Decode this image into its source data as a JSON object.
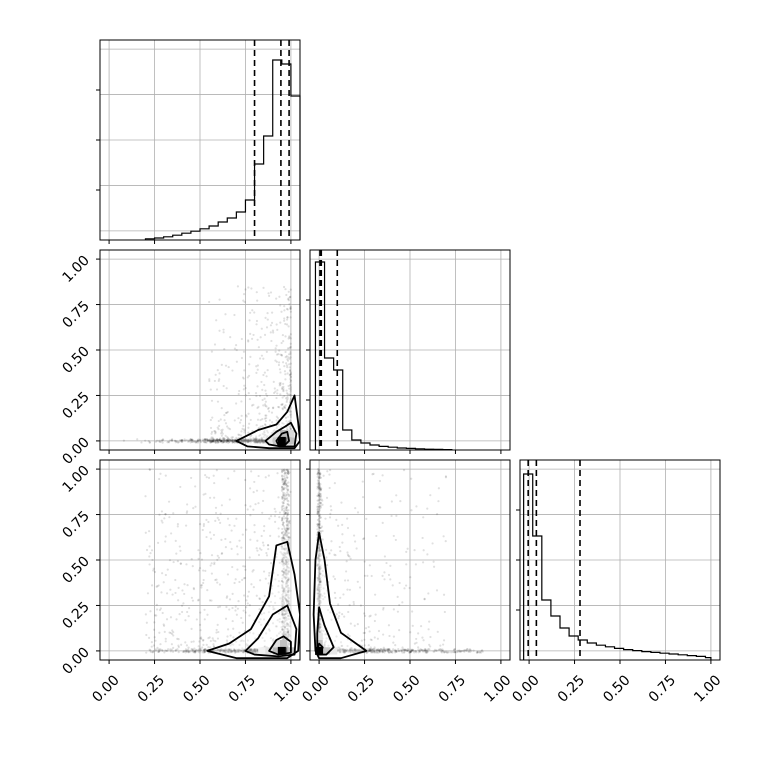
{
  "chart_data": {
    "type": "corner",
    "description_free": true,
    "axis_range": [
      -0.05,
      1.05
    ],
    "tick_labels": [
      "0.00",
      "0.25",
      "0.50",
      "0.75",
      "1.00"
    ],
    "tick_values": [
      0,
      0.25,
      0.5,
      0.75,
      1.0
    ],
    "grid": true,
    "histograms": [
      {
        "variable_index": 0,
        "bin_edges": [
          0.2,
          0.25,
          0.3,
          0.35,
          0.4,
          0.45,
          0.5,
          0.55,
          0.6,
          0.65,
          0.7,
          0.75,
          0.8,
          0.85,
          0.9,
          0.95,
          1.0,
          1.05
        ],
        "counts": [
          0.006,
          0.01,
          0.016,
          0.024,
          0.034,
          0.044,
          0.056,
          0.07,
          0.09,
          0.11,
          0.14,
          0.2,
          0.38,
          0.52,
          0.9,
          0.88,
          0.72
        ],
        "ylim": [
          0,
          1.0
        ],
        "quantile_lines": [
          0.8,
          0.945,
          0.99
        ]
      },
      {
        "variable_index": 1,
        "bin_edges": [
          -0.02,
          0.03,
          0.08,
          0.13,
          0.18,
          0.23,
          0.28,
          0.33,
          0.38,
          0.43,
          0.48,
          0.53,
          0.58,
          0.63,
          0.68,
          0.73
        ],
        "counts": [
          0.94,
          0.46,
          0.4,
          0.1,
          0.05,
          0.035,
          0.025,
          0.018,
          0.014,
          0.01,
          0.008,
          0.006,
          0.004,
          0.003,
          0.002
        ],
        "ylim": [
          0,
          1.0
        ],
        "quantile_lines": [
          0.005,
          0.012,
          0.1
        ]
      },
      {
        "variable_index": 2,
        "bin_edges": [
          -0.03,
          0.02,
          0.07,
          0.12,
          0.17,
          0.22,
          0.27,
          0.32,
          0.37,
          0.42,
          0.47,
          0.52,
          0.57,
          0.62,
          0.67,
          0.72,
          0.77,
          0.82,
          0.87,
          0.92,
          0.97,
          1.0
        ],
        "counts": [
          0.93,
          0.62,
          0.3,
          0.22,
          0.16,
          0.12,
          0.1,
          0.085,
          0.074,
          0.066,
          0.058,
          0.052,
          0.047,
          0.042,
          0.038,
          0.034,
          0.03,
          0.026,
          0.022,
          0.018,
          0.012
        ],
        "ylim": [
          0,
          1.0
        ],
        "quantile_lines": [
          -0.005,
          0.04,
          0.28
        ]
      }
    ],
    "contour_panels": [
      {
        "x_index": 0,
        "y_index": 1,
        "peak": [
          0.95,
          0.0
        ],
        "levels": [
          [
            [
              0.7,
              0.0
            ],
            [
              0.82,
              0.06
            ],
            [
              0.92,
              0.09
            ],
            [
              0.98,
              0.16
            ],
            [
              1.02,
              0.25
            ],
            [
              1.04,
              0.1
            ],
            [
              1.05,
              0.0
            ],
            [
              1.02,
              -0.04
            ],
            [
              0.88,
              -0.04
            ],
            [
              0.76,
              -0.03
            ]
          ],
          [
            [
              0.86,
              0.0
            ],
            [
              0.92,
              0.05
            ],
            [
              0.97,
              0.08
            ],
            [
              1.0,
              0.1
            ],
            [
              1.03,
              0.04
            ],
            [
              1.02,
              -0.03
            ],
            [
              0.94,
              -0.03
            ],
            [
              0.88,
              -0.02
            ]
          ],
          [
            [
              0.92,
              0.0
            ],
            [
              0.95,
              0.04
            ],
            [
              0.98,
              0.05
            ],
            [
              0.99,
              0.0
            ],
            [
              0.97,
              -0.02
            ],
            [
              0.93,
              -0.02
            ]
          ]
        ],
        "shade_cells": [
          {
            "x": [
              0.9,
              0.94
            ],
            "y": [
              -0.02,
              0.02
            ],
            "v": 0.35
          },
          {
            "x": [
              0.94,
              0.98
            ],
            "y": [
              -0.02,
              0.02
            ],
            "v": 0.95
          },
          {
            "x": [
              0.98,
              1.02
            ],
            "y": [
              -0.02,
              0.02
            ],
            "v": 0.4
          },
          {
            "x": [
              0.94,
              0.98
            ],
            "y": [
              0.02,
              0.06
            ],
            "v": 0.45
          },
          {
            "x": [
              0.98,
              1.02
            ],
            "y": [
              0.02,
              0.06
            ],
            "v": 0.25
          },
          {
            "x": [
              0.86,
              0.9
            ],
            "y": [
              -0.02,
              0.02
            ],
            "v": 0.15
          },
          {
            "x": [
              0.9,
              0.94
            ],
            "y": [
              0.02,
              0.06
            ],
            "v": 0.18
          }
        ],
        "scatter_density": "dense along y=0 for x in [0.05, 1.0], plume rising near x=1.0"
      },
      {
        "x_index": 0,
        "y_index": 2,
        "peak": [
          0.95,
          0.0
        ],
        "levels": [
          [
            [
              0.54,
              0.0
            ],
            [
              0.66,
              0.04
            ],
            [
              0.78,
              0.12
            ],
            [
              0.88,
              0.3
            ],
            [
              0.92,
              0.58
            ],
            [
              0.98,
              0.6
            ],
            [
              1.02,
              0.42
            ],
            [
              1.05,
              0.2
            ],
            [
              1.04,
              0.0
            ],
            [
              0.98,
              -0.04
            ],
            [
              0.7,
              -0.04
            ]
          ],
          [
            [
              0.75,
              0.0
            ],
            [
              0.82,
              0.07
            ],
            [
              0.9,
              0.2
            ],
            [
              0.98,
              0.25
            ],
            [
              1.03,
              0.12
            ],
            [
              1.02,
              -0.02
            ],
            [
              0.93,
              -0.03
            ],
            [
              0.8,
              -0.02
            ]
          ],
          [
            [
              0.88,
              0.0
            ],
            [
              0.92,
              0.06
            ],
            [
              0.96,
              0.08
            ],
            [
              1.0,
              0.05
            ],
            [
              1.0,
              -0.01
            ],
            [
              0.93,
              -0.02
            ]
          ]
        ],
        "shade_cells": [
          {
            "x": [
              0.9,
              0.94
            ],
            "y": [
              -0.02,
              0.02
            ],
            "v": 0.45
          },
          {
            "x": [
              0.94,
              0.98
            ],
            "y": [
              -0.02,
              0.02
            ],
            "v": 0.95
          },
          {
            "x": [
              0.98,
              1.02
            ],
            "y": [
              -0.02,
              0.02
            ],
            "v": 0.4
          },
          {
            "x": [
              0.9,
              0.94
            ],
            "y": [
              0.02,
              0.06
            ],
            "v": 0.2
          },
          {
            "x": [
              0.94,
              0.98
            ],
            "y": [
              0.02,
              0.06
            ],
            "v": 0.4
          },
          {
            "x": [
              0.86,
              0.9
            ],
            "y": [
              -0.02,
              0.02
            ],
            "v": 0.18
          },
          {
            "x": [
              0.82,
              0.86
            ],
            "y": [
              -0.02,
              0.02
            ],
            "v": 0.08
          }
        ],
        "scatter_density": "broad cloud over x in [0.2, 1.0], y in [0, 1], concentrated near y=0 and x=1"
      },
      {
        "x_index": 1,
        "y_index": 2,
        "peak": [
          0.0,
          0.0
        ],
        "levels": [
          [
            [
              -0.02,
              0.0
            ],
            [
              -0.03,
              0.2
            ],
            [
              -0.02,
              0.5
            ],
            [
              0.0,
              0.65
            ],
            [
              0.03,
              0.5
            ],
            [
              0.06,
              0.26
            ],
            [
              0.12,
              0.1
            ],
            [
              0.26,
              0.0
            ],
            [
              0.12,
              -0.04
            ],
            [
              0.0,
              -0.04
            ]
          ],
          [
            [
              -0.01,
              0.0
            ],
            [
              -0.01,
              0.1
            ],
            [
              0.0,
              0.24
            ],
            [
              0.03,
              0.14
            ],
            [
              0.08,
              0.02
            ],
            [
              0.04,
              -0.02
            ],
            [
              0.0,
              -0.02
            ]
          ],
          [
            [
              -0.01,
              0.0
            ],
            [
              0.0,
              0.04
            ],
            [
              0.02,
              0.02
            ],
            [
              0.01,
              -0.01
            ]
          ]
        ],
        "shade_cells": [
          {
            "x": [
              -0.02,
              0.02
            ],
            "y": [
              -0.02,
              0.02
            ],
            "v": 0.95
          },
          {
            "x": [
              -0.02,
              0.02
            ],
            "y": [
              0.02,
              0.06
            ],
            "v": 0.4
          },
          {
            "x": [
              0.02,
              0.06
            ],
            "y": [
              -0.02,
              0.02
            ],
            "v": 0.35
          },
          {
            "x": [
              -0.02,
              0.02
            ],
            "y": [
              0.06,
              0.1
            ],
            "v": 0.18
          },
          {
            "x": [
              0.06,
              0.1
            ],
            "y": [
              -0.02,
              0.02
            ],
            "v": 0.15
          }
        ],
        "scatter_density": "dense near origin spreading along both axes toward 1.0"
      }
    ]
  }
}
